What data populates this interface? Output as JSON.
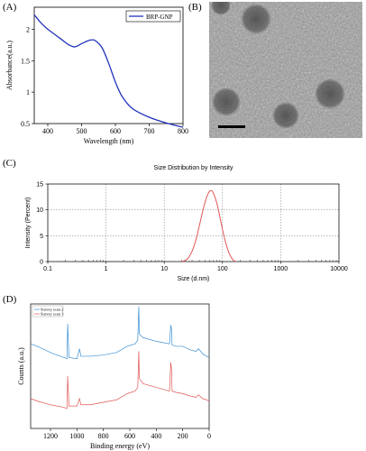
{
  "panels": {
    "A": "(A)",
    "B": "(B)",
    "C": "(C)",
    "D": "(D)"
  },
  "colors": {
    "uv_line": "#2233bb",
    "dls_line": "#e05555",
    "xps_survey2": "#3a8fd4",
    "xps_survey1": "#e05555",
    "tem_background": "#9a9a9a",
    "grid": "#777777"
  },
  "tem_image": {
    "description_icon": "tem-micrograph",
    "particle_count": 5
  },
  "chart_data": [
    {
      "id": "A",
      "type": "line",
      "xlabel": "Wavelength (nm)",
      "ylabel": "Absorbance(a.u.)",
      "xlim": [
        360,
        800
      ],
      "ylim": [
        0.5,
        2.35
      ],
      "xticks": [
        400,
        500,
        600,
        700,
        800
      ],
      "yticks": [
        0.5,
        1.0,
        1.5,
        2.0
      ],
      "ytick_labels": [
        "0.5",
        "1",
        "1.5",
        "2"
      ],
      "legend_position": "top-right",
      "grid": false,
      "series": [
        {
          "name": "BRP-GNP",
          "x": [
            360,
            380,
            400,
            420,
            440,
            460,
            480,
            500,
            520,
            530,
            540,
            560,
            580,
            600,
            620,
            650,
            700,
            750,
            800
          ],
          "y": [
            2.23,
            2.1,
            2.0,
            1.92,
            1.84,
            1.76,
            1.72,
            1.77,
            1.82,
            1.83,
            1.82,
            1.71,
            1.46,
            1.16,
            0.93,
            0.74,
            0.6,
            0.51,
            0.44
          ]
        }
      ]
    },
    {
      "id": "C",
      "type": "line",
      "title": "Size Distribution by Intensity",
      "xlabel": "Size (d.nm)",
      "ylabel": "Intensity (Percent)",
      "xscale": "log",
      "xlim": [
        0.1,
        10000
      ],
      "ylim": [
        0,
        15
      ],
      "xticks": [
        0.1,
        1,
        10,
        100,
        1000,
        10000
      ],
      "xtick_labels": [
        "0.1",
        "1",
        "10",
        "100",
        "1000",
        "10000"
      ],
      "yticks": [
        0,
        5,
        10,
        15
      ],
      "ytick_labels": [
        "0",
        "5",
        "10",
        "15"
      ],
      "grid": true,
      "series": [
        {
          "x": [
            20,
            25,
            30,
            35,
            40,
            45,
            50,
            55,
            60,
            65,
            70,
            80,
            90,
            100,
            115,
            130,
            150,
            170
          ],
          "y": [
            0,
            0.5,
            2.0,
            4.2,
            6.9,
            9.4,
            11.4,
            12.8,
            13.6,
            13.7,
            13.2,
            11.3,
            8.7,
            6.2,
            3.4,
            1.6,
            0.4,
            0
          ]
        }
      ]
    },
    {
      "id": "D",
      "type": "line",
      "xlabel": "Binding energy (eV)",
      "ylabel": "Counts (a.u.)",
      "xlim": [
        1350,
        0
      ],
      "xticks": [
        1200,
        1000,
        800,
        600,
        400,
        200,
        0
      ],
      "ylim": [
        0,
        100
      ],
      "legend_position": "top-left",
      "grid": false,
      "series": [
        {
          "name": "Survey scan 2",
          "x": [
            1350,
            1300,
            1200,
            1100,
            1075,
            1070,
            1060,
            1000,
            980,
            970,
            900,
            800,
            700,
            620,
            560,
            540,
            532,
            528,
            520,
            500,
            400,
            300,
            290,
            285,
            280,
            250,
            200,
            140,
            100,
            80,
            50,
            20,
            0
          ],
          "y": [
            68,
            66,
            61,
            57,
            56,
            84,
            57,
            56,
            64,
            58,
            58,
            59,
            61,
            66,
            68,
            71,
            98,
            76,
            75,
            73,
            70,
            68,
            83,
            80,
            67,
            66,
            66,
            63,
            62,
            64,
            60,
            58,
            57
          ]
        },
        {
          "name": "Survey scan 1",
          "x": [
            1350,
            1300,
            1200,
            1100,
            1075,
            1070,
            1060,
            1000,
            980,
            970,
            900,
            800,
            700,
            620,
            560,
            540,
            532,
            528,
            520,
            500,
            400,
            300,
            290,
            285,
            280,
            250,
            200,
            140,
            100,
            80,
            50,
            20,
            0
          ],
          "y": [
            24,
            22,
            19,
            17,
            16,
            42,
            18,
            18,
            24,
            19,
            19,
            21,
            23,
            28,
            30,
            33,
            62,
            40,
            39,
            36,
            33,
            30,
            53,
            48,
            30,
            29,
            28,
            26,
            25,
            27,
            24,
            23,
            22
          ]
        }
      ]
    }
  ]
}
